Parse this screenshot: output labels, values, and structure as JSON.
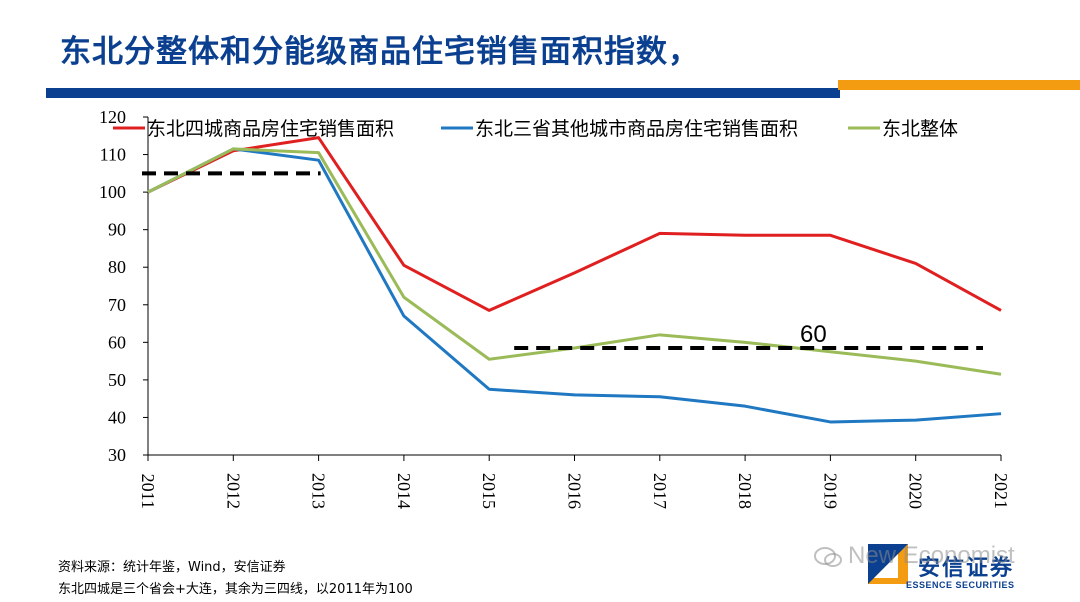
{
  "slide": {
    "title": "东北分整体和分能级商品住宅销售面积指数，",
    "footnote_source": "资料来源：统计年鉴，Wind，安信证券",
    "footnote_note": "东北四城是三个省会+大连，其余为三四线，以2011年为100"
  },
  "logo": {
    "cn": "安信证券",
    "en": "ESSENCE SECURITIES"
  },
  "watermark": {
    "text": "New Economist"
  },
  "colors": {
    "title": "#0b3f8f",
    "bar_blue": "#0b3f8f",
    "bar_orange": "#f39c12"
  },
  "chart_data": {
    "type": "line",
    "x": [
      "2011",
      "2012",
      "2013",
      "2014",
      "2015",
      "2016",
      "2017",
      "2018",
      "2019",
      "2020",
      "2021"
    ],
    "ylim": [
      30,
      120
    ],
    "yticks": [
      30,
      40,
      50,
      60,
      70,
      80,
      90,
      100,
      110,
      120
    ],
    "grid": false,
    "legend_position": "top",
    "series": [
      {
        "name": "东北四城商品房住宅销售面积",
        "color": "#e02020",
        "values": [
          100,
          111,
          114.5,
          80.5,
          68.5,
          78.5,
          89,
          88.5,
          88.5,
          81,
          68.5
        ]
      },
      {
        "name": "东北三省其他城市商品房住宅销售面积",
        "color": "#1f78c1",
        "values": [
          100,
          111.5,
          108.5,
          67,
          47.5,
          46,
          45.5,
          43,
          38.8,
          39.3,
          41
        ]
      },
      {
        "name": "东北整体",
        "color": "#9bbb59",
        "values": [
          100,
          111.5,
          110.5,
          72,
          55.5,
          58.5,
          62,
          60,
          57.5,
          55,
          51.5
        ]
      }
    ],
    "reference_lines": [
      {
        "y": 105,
        "x_from": "2011",
        "x_to": "2013",
        "style": "dashed",
        "color": "#000000"
      },
      {
        "y": 58.5,
        "x_from": "2015",
        "x_to": "2021",
        "style": "dashed",
        "color": "#000000",
        "label": "60"
      }
    ]
  }
}
